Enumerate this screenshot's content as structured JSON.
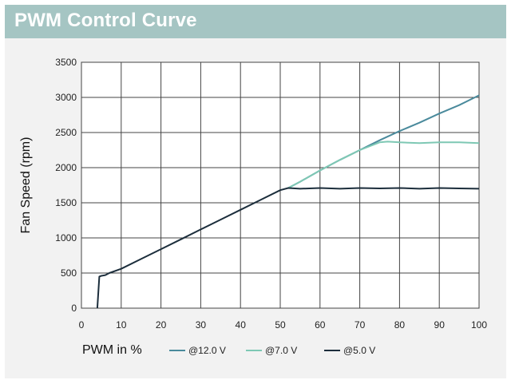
{
  "header": {
    "title": "PWM Control Curve"
  },
  "chart_data": {
    "type": "line",
    "title": "PWM Control Curve",
    "xlabel": "PWM in %",
    "ylabel": "Fan Speed (rpm)",
    "xlim": [
      0,
      100
    ],
    "ylim": [
      0,
      3500
    ],
    "x_ticks": [
      "0",
      "10",
      "20",
      "30",
      "40",
      "50",
      "60",
      "70",
      "80",
      "90",
      "100"
    ],
    "y_ticks": [
      "0",
      "500",
      "1000",
      "1500",
      "2000",
      "2500",
      "3000",
      "3500"
    ],
    "grid": true,
    "legend_position": "bottom",
    "series": [
      {
        "name": "@12.0 V",
        "color": "#4a8a9c",
        "x": [
          52,
          55,
          60,
          65,
          70,
          75,
          80,
          85,
          90,
          95,
          100
        ],
        "y": [
          1710,
          1800,
          1960,
          2110,
          2250,
          2390,
          2520,
          2640,
          2770,
          2890,
          3030
        ]
      },
      {
        "name": "@7.0 V",
        "color": "#7ec8b4",
        "x": [
          52,
          55,
          60,
          65,
          70,
          75,
          77,
          80,
          85,
          90,
          95,
          100
        ],
        "y": [
          1710,
          1800,
          1960,
          2110,
          2250,
          2360,
          2370,
          2360,
          2350,
          2360,
          2360,
          2350
        ]
      },
      {
        "name": "@5.0 V",
        "color": "#1c2e3c",
        "x": [
          4,
          4.5,
          5,
          6,
          7,
          10,
          15,
          20,
          25,
          30,
          35,
          40,
          45,
          50,
          52,
          55,
          60,
          65,
          70,
          75,
          80,
          85,
          90,
          95,
          100
        ],
        "y": [
          0,
          450,
          460,
          470,
          500,
          560,
          700,
          840,
          980,
          1120,
          1260,
          1400,
          1540,
          1680,
          1710,
          1700,
          1710,
          1700,
          1710,
          1705,
          1710,
          1700,
          1710,
          1705,
          1700
        ]
      }
    ]
  }
}
